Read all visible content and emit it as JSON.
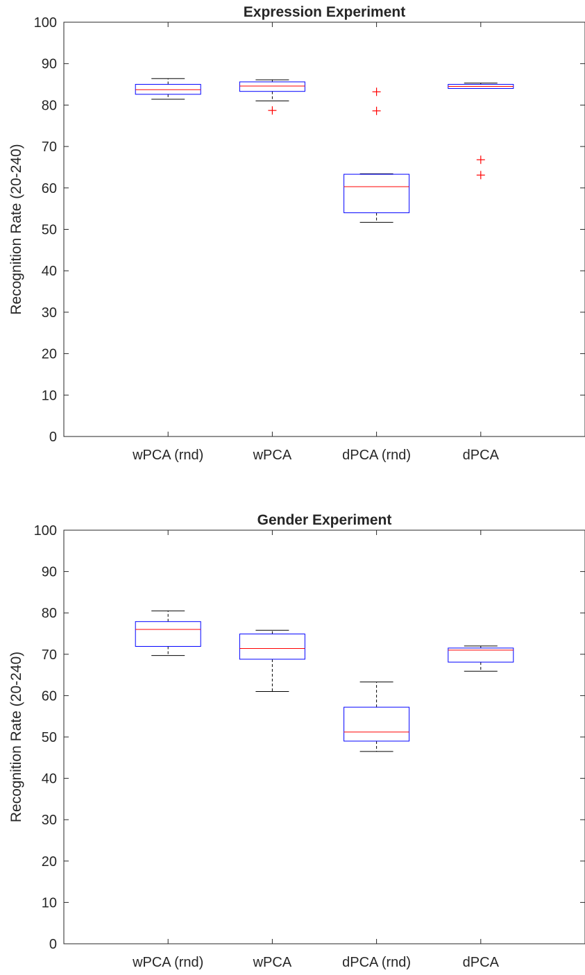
{
  "chart_data": [
    {
      "type": "box",
      "title": "Expression Experiment",
      "xlabel": "",
      "ylabel": "Recognition Rate (20-240)",
      "ylim": [
        0,
        100
      ],
      "yticks": [
        "0",
        "10",
        "20",
        "30",
        "40",
        "50",
        "60",
        "70",
        "80",
        "90",
        "100"
      ],
      "categories": [
        "wPCA (rnd)",
        "wPCA",
        "dPCA (rnd)",
        "dPCA"
      ],
      "boxes": [
        {
          "whisker_low": 81.4,
          "q1": 82.6,
          "median": 83.7,
          "q3": 85.0,
          "whisker_high": 86.4,
          "outliers": []
        },
        {
          "whisker_low": 81.0,
          "q1": 83.3,
          "median": 84.6,
          "q3": 85.6,
          "whisker_high": 86.1,
          "outliers": [
            78.7
          ]
        },
        {
          "whisker_low": 51.7,
          "q1": 54.0,
          "median": 60.3,
          "q3": 63.3,
          "whisker_high": 63.4,
          "outliers": [
            83.2,
            78.6
          ]
        },
        {
          "whisker_low": 84.0,
          "q1": 84.0,
          "median": 84.5,
          "q3": 85.0,
          "whisker_high": 85.3,
          "outliers": [
            66.8,
            63.1
          ]
        }
      ],
      "colors": {
        "box": "#0000ff",
        "median": "#ff0000",
        "whisker": "#000000",
        "outlier": "#ff0000"
      },
      "grid": false,
      "legend": "none"
    },
    {
      "type": "box",
      "title": "Gender Experiment",
      "xlabel": "",
      "ylabel": "Recognition Rate (20-240)",
      "ylim": [
        0,
        100
      ],
      "yticks": [
        "0",
        "10",
        "20",
        "30",
        "40",
        "50",
        "60",
        "70",
        "80",
        "90",
        "100"
      ],
      "categories": [
        "wPCA (rnd)",
        "wPCA",
        "dPCA (rnd)",
        "dPCA"
      ],
      "boxes": [
        {
          "whisker_low": 69.7,
          "q1": 71.9,
          "median": 76.0,
          "q3": 77.9,
          "whisker_high": 80.5,
          "outliers": []
        },
        {
          "whisker_low": 61.0,
          "q1": 68.8,
          "median": 71.4,
          "q3": 74.9,
          "whisker_high": 75.8,
          "outliers": []
        },
        {
          "whisker_low": 46.5,
          "q1": 49.0,
          "median": 51.2,
          "q3": 57.2,
          "whisker_high": 63.3,
          "outliers": []
        },
        {
          "whisker_low": 65.9,
          "q1": 68.1,
          "median": 71.0,
          "q3": 71.5,
          "whisker_high": 72.0,
          "outliers": []
        }
      ],
      "colors": {
        "box": "#0000ff",
        "median": "#ff0000",
        "whisker": "#000000",
        "outlier": "#ff0000"
      },
      "grid": false,
      "legend": "none"
    }
  ]
}
